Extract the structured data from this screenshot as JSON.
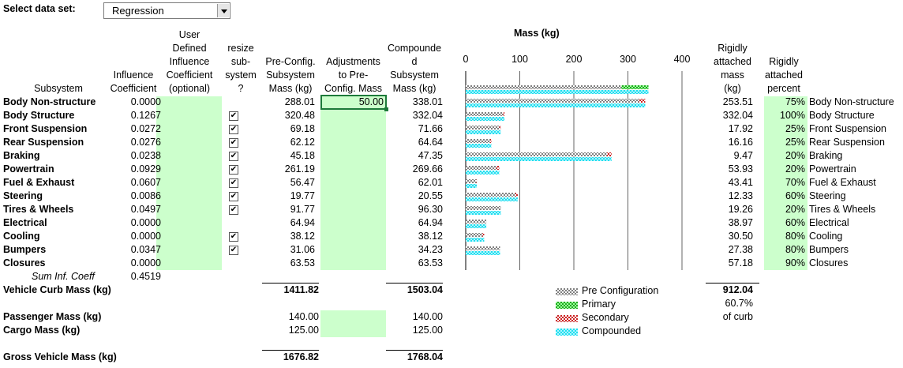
{
  "dataset": {
    "label": "Select data set:",
    "value": "Regression"
  },
  "headers": {
    "subsystem": "Subsystem",
    "influence": "Influence\nCoefficient",
    "user_defined": "User\nDefined\nInfluence\nCoefficient\n(optional)",
    "resize": "resize\nsub-\nsystem\n?",
    "preconfig": "Pre-Config.\nSubsystem\nMass  (kg)",
    "adjustments": "Adjustments\nto Pre-\nConfig. Mass",
    "compounded": "Compounde\nd\nSubsystem\nMass (kg)",
    "rigid_mass": "Rigidly\nattached\nmass\n(kg)",
    "rigid_pct": "Rigidly\nattached\npercent"
  },
  "rows": [
    {
      "name": "Body Non-structure",
      "coef": "0.0000",
      "resize": false,
      "pre": "288.01",
      "adj": "50.00",
      "comp": "338.01",
      "rmass": "253.51",
      "rpct": "75%",
      "label": "Body Non-structure"
    },
    {
      "name": "Body Structure",
      "coef": "0.1267",
      "resize": true,
      "pre": "320.48",
      "adj": "",
      "comp": "332.04",
      "rmass": "332.04",
      "rpct": "100%",
      "label": "Body Structure"
    },
    {
      "name": "Front Suspension",
      "coef": "0.0272",
      "resize": true,
      "pre": "69.18",
      "adj": "",
      "comp": "71.66",
      "rmass": "17.92",
      "rpct": "25%",
      "label": "Front Suspension"
    },
    {
      "name": "Rear Suspension",
      "coef": "0.0276",
      "resize": true,
      "pre": "62.12",
      "adj": "",
      "comp": "64.64",
      "rmass": "16.16",
      "rpct": "25%",
      "label": "Rear Suspension"
    },
    {
      "name": "Braking",
      "coef": "0.0238",
      "resize": true,
      "pre": "45.18",
      "adj": "",
      "comp": "47.35",
      "rmass": "9.47",
      "rpct": "20%",
      "label": "Braking"
    },
    {
      "name": "Powertrain",
      "coef": "0.0929",
      "resize": true,
      "pre": "261.19",
      "adj": "",
      "comp": "269.66",
      "rmass": "53.93",
      "rpct": "20%",
      "label": "Powertrain"
    },
    {
      "name": "Fuel & Exhaust",
      "coef": "0.0607",
      "resize": true,
      "pre": "56.47",
      "adj": "",
      "comp": "62.01",
      "rmass": "43.41",
      "rpct": "70%",
      "label": "Fuel & Exhaust"
    },
    {
      "name": "Steering",
      "coef": "0.0086",
      "resize": true,
      "pre": "19.77",
      "adj": "",
      "comp": "20.55",
      "rmass": "12.33",
      "rpct": "60%",
      "label": "Steering"
    },
    {
      "name": "Tires & Wheels",
      "coef": "0.0497",
      "resize": true,
      "pre": "91.77",
      "adj": "",
      "comp": "96.30",
      "rmass": "19.26",
      "rpct": "20%",
      "label": "Tires & Wheels"
    },
    {
      "name": "Electrical",
      "coef": "0.0000",
      "resize": false,
      "pre": "64.94",
      "adj": "",
      "comp": "64.94",
      "rmass": "38.97",
      "rpct": "60%",
      "label": "Electrical"
    },
    {
      "name": "Cooling",
      "coef": "0.0000",
      "resize": true,
      "pre": "38.12",
      "adj": "",
      "comp": "38.12",
      "rmass": "30.50",
      "rpct": "80%",
      "label": "Cooling"
    },
    {
      "name": "Bumpers",
      "coef": "0.0347",
      "resize": true,
      "pre": "31.06",
      "adj": "",
      "comp": "34.23",
      "rmass": "27.38",
      "rpct": "80%",
      "label": "Bumpers"
    },
    {
      "name": "Closures",
      "coef": "0.0000",
      "resize": false,
      "pre": "63.53",
      "adj": "",
      "comp": "63.53",
      "rmass": "57.18",
      "rpct": "90%",
      "label": "Closures"
    }
  ],
  "sum_inf": {
    "label": "Sum Inf. Coeff",
    "value": "0.4519"
  },
  "curb": {
    "label": "Vehicle Curb Mass (kg)",
    "pre": "1411.82",
    "comp": "1503.04",
    "rigid": "912.04",
    "pct": "60.7%",
    "pct_note": "of curb"
  },
  "passenger": {
    "label": "Passenger Mass (kg)",
    "pre": "140.00",
    "comp": "140.00"
  },
  "cargo": {
    "label": "Cargo Mass (kg)",
    "pre": "125.00",
    "comp": "125.00"
  },
  "gross": {
    "label": "Gross Vehicle Mass (kg)",
    "pre": "1676.82",
    "comp": "1768.04"
  },
  "chart_data": {
    "type": "bar",
    "title": "Mass (kg)",
    "xlim": [
      0,
      400
    ],
    "ticks": [
      "0",
      "100",
      "200",
      "300",
      "400"
    ],
    "series": [
      {
        "name": "Pre Configuration",
        "color": "#a0a0a0",
        "values": [
          288.01,
          320.48,
          69.18,
          62.12,
          45.18,
          261.19,
          56.47,
          19.77,
          91.77,
          64.94,
          38.12,
          31.06,
          63.53
        ]
      },
      {
        "name": "Primary",
        "color": "#33cc33",
        "values": [
          50,
          0,
          0,
          0,
          0,
          0,
          0,
          0,
          0,
          0,
          0,
          0,
          0
        ]
      },
      {
        "name": "Secondary",
        "color": "#cc3333",
        "values": [
          0,
          11.56,
          2.48,
          2.52,
          2.17,
          8.47,
          5.54,
          0.78,
          4.53,
          0,
          0,
          3.17,
          0
        ]
      },
      {
        "name": "Compounded",
        "color": "#33ddee",
        "values": [
          338.01,
          332.04,
          71.66,
          64.64,
          47.35,
          269.66,
          62.01,
          20.55,
          96.3,
          64.94,
          38.12,
          34.23,
          63.53
        ]
      }
    ]
  }
}
